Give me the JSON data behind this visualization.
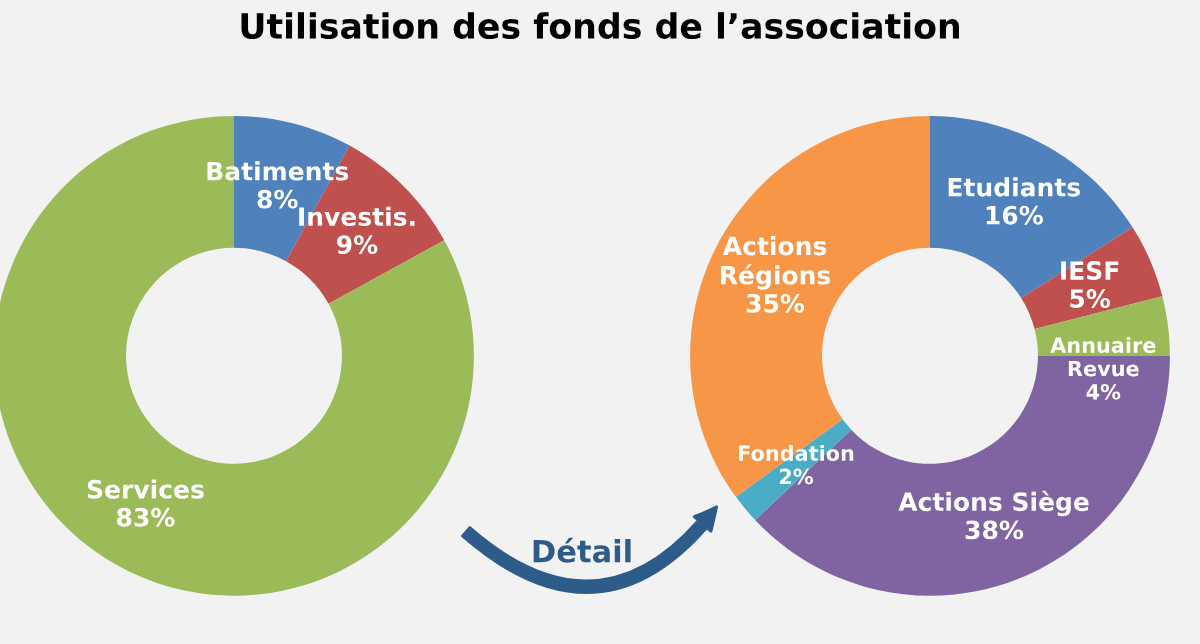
{
  "chart_data": [
    {
      "type": "donut",
      "title": "Utilisation des fonds de l’association",
      "categories": [
        "Batiments",
        "Investis.",
        "Services"
      ],
      "values": [
        8,
        9,
        83
      ],
      "value_labels": [
        "8%",
        "9%",
        "83%"
      ],
      "colors": [
        "#4f81bd",
        "#c0504d",
        "#9bbb59"
      ],
      "annotations": [
        "Détail"
      ]
    },
    {
      "type": "donut",
      "categories": [
        "Etudiants",
        "IESF",
        "Annuaire\nRevue",
        "Actions Siège",
        "Fondation",
        "Actions\nRégions"
      ],
      "values": [
        16,
        5,
        4,
        38,
        2,
        35
      ],
      "value_labels": [
        "16%",
        "5%",
        "4%",
        "38%",
        "2%",
        "35%"
      ],
      "colors": [
        "#4f81bd",
        "#c0504d",
        "#9bbb59",
        "#8064a2",
        "#4bacc6",
        "#f79646"
      ]
    }
  ]
}
